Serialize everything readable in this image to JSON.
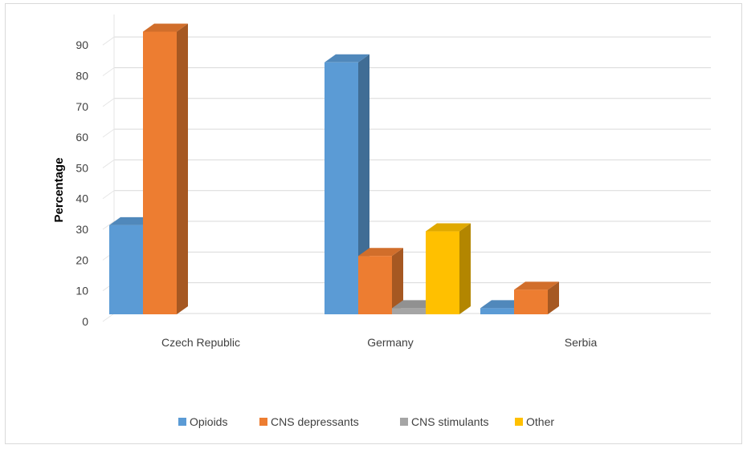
{
  "chart_data": {
    "type": "bar",
    "title": "",
    "xlabel": "",
    "ylabel": "Percentage",
    "ylim": [
      0,
      95
    ],
    "yticks": [
      0,
      10,
      20,
      30,
      40,
      50,
      60,
      70,
      80,
      90
    ],
    "grid": true,
    "legend_position": "bottom",
    "categories": [
      "Czech Republic",
      "Germany",
      "Serbia"
    ],
    "series": [
      {
        "name": "Opioids",
        "color": "#5B9BD5",
        "values": [
          29,
          82,
          2
        ]
      },
      {
        "name": "CNS depressants",
        "color": "#ED7D31",
        "values": [
          92,
          19,
          8
        ]
      },
      {
        "name": "CNS stimulants",
        "color": "#A5A5A5",
        "values": [
          0,
          2,
          0
        ]
      },
      {
        "name": "Other",
        "color": "#FFC000",
        "values": [
          0,
          27,
          0
        ]
      }
    ]
  }
}
